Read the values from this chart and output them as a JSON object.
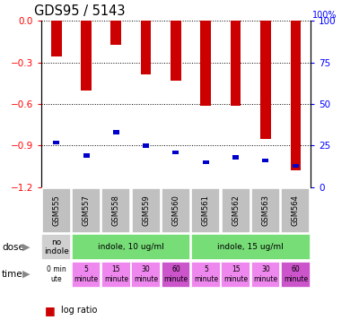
{
  "title": "GDS95 / 5143",
  "samples": [
    "GSM555",
    "GSM557",
    "GSM558",
    "GSM559",
    "GSM560",
    "GSM561",
    "GSM562",
    "GSM563",
    "GSM564"
  ],
  "log_ratios": [
    -0.255,
    -0.5,
    -0.17,
    -0.385,
    -0.43,
    -0.61,
    -0.615,
    -0.855,
    -1.08
  ],
  "percentile_ranks": [
    27,
    19,
    33,
    25,
    21,
    15,
    18,
    16,
    13
  ],
  "ylim_min": -1.2,
  "ylim_max": 0.0,
  "yticks": [
    0,
    -0.3,
    -0.6,
    -0.9,
    -1.2
  ],
  "right_yticks": [
    100,
    75,
    50,
    25,
    0
  ],
  "bar_color": "#cc0000",
  "percentile_color": "#0000cc",
  "background_color": "#ffffff",
  "label_row_color": "#c0c0c0",
  "dose_spans": [
    {
      "start": 0,
      "end": 1,
      "label": "no\nindole",
      "color": "#d0d0d0"
    },
    {
      "start": 1,
      "end": 5,
      "label": "indole, 10 ug/ml",
      "color": "#77dd77"
    },
    {
      "start": 5,
      "end": 9,
      "label": "indole, 15 ug/ml",
      "color": "#77dd77"
    }
  ],
  "time_cells": [
    {
      "idx": 0,
      "label": "0 min\nute",
      "color": "#ffffff"
    },
    {
      "idx": 1,
      "label": "5\nminute",
      "color": "#ee88ee"
    },
    {
      "idx": 2,
      "label": "15\nminute",
      "color": "#ee88ee"
    },
    {
      "idx": 3,
      "label": "30\nminute",
      "color": "#ee88ee"
    },
    {
      "idx": 4,
      "label": "60\nminute",
      "color": "#cc55cc"
    },
    {
      "idx": 5,
      "label": "5\nminute",
      "color": "#ee88ee"
    },
    {
      "idx": 6,
      "label": "15\nminute",
      "color": "#ee88ee"
    },
    {
      "idx": 7,
      "label": "30\nminute",
      "color": "#ee88ee"
    },
    {
      "idx": 8,
      "label": "60\nminute",
      "color": "#cc55cc"
    }
  ]
}
